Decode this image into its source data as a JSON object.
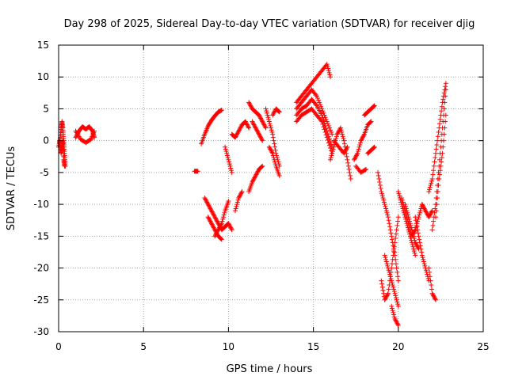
{
  "chart_data": {
    "type": "scatter",
    "title": "Day 298 of 2025, Sidereal Day-to-day VTEC variation (SDTVAR) for receiver djig",
    "xlabel": "GPS time / hours",
    "ylabel": "SDTVAR / TECUs",
    "xlim": [
      0,
      25
    ],
    "ylim": [
      -30,
      15
    ],
    "xticks": [
      "0",
      "5",
      "10",
      "15",
      "20",
      "25"
    ],
    "yticks": [
      "15",
      "10",
      "5",
      "0",
      "-5",
      "-10",
      "-15",
      "-20",
      "-25",
      "-30"
    ],
    "grid": true,
    "marker": "plus",
    "color": "#ff0000",
    "segments": [
      {
        "x": [
          0.0,
          0.1,
          0.15,
          0.2,
          0.25,
          0.3,
          0.35,
          0.4
        ],
        "y": [
          -1,
          0.5,
          2,
          3,
          2,
          0,
          -2,
          -4
        ]
      },
      {
        "x": [
          0.05,
          0.1,
          0.15,
          0.2,
          0.25,
          0.3,
          0.35
        ],
        "y": [
          0,
          -1,
          -2,
          -1,
          0,
          -3,
          -4
        ]
      },
      {
        "x": [
          1.0,
          1.2,
          1.4,
          1.6,
          1.8,
          2.0,
          2.1
        ],
        "y": [
          0.5,
          1.5,
          2.2,
          1.8,
          2.2,
          1.5,
          0.5
        ]
      },
      {
        "x": [
          1.0,
          1.3,
          1.6,
          1.9,
          2.1
        ],
        "y": [
          1.5,
          0.2,
          -0.3,
          0.2,
          1.5
        ]
      },
      {
        "x": [
          8.0,
          8.2
        ],
        "y": [
          -4.8,
          -4.8
        ]
      },
      {
        "x": [
          8.4,
          8.6,
          8.8,
          9.0,
          9.2,
          9.4,
          9.6
        ],
        "y": [
          -0.5,
          1,
          2.3,
          3.2,
          3.9,
          4.5,
          4.8
        ]
      },
      {
        "x": [
          8.6,
          8.8,
          9.0,
          9.2,
          9.4,
          9.6,
          9.8,
          10.0,
          10.2
        ],
        "y": [
          -9,
          -10,
          -11,
          -12,
          -13,
          -14,
          -13.5,
          -13,
          -14
        ]
      },
      {
        "x": [
          8.8,
          9.0,
          9.2,
          9.4,
          9.6
        ],
        "y": [
          -12,
          -13,
          -14,
          -15,
          -15.5
        ]
      },
      {
        "x": [
          9.2,
          9.4,
          9.6,
          9.8,
          10.0
        ],
        "y": [
          -15,
          -14,
          -13,
          -11,
          -9.5
        ]
      },
      {
        "x": [
          9.8,
          10.0,
          10.2
        ],
        "y": [
          -1,
          -3,
          -5
        ]
      },
      {
        "x": [
          10.2,
          10.4,
          10.6,
          10.8,
          11.0,
          11.2
        ],
        "y": [
          1,
          0.5,
          1.5,
          2.5,
          3,
          2
        ]
      },
      {
        "x": [
          10.4,
          10.6,
          10.8
        ],
        "y": [
          -11,
          -9,
          -8
        ]
      },
      {
        "x": [
          11.2,
          11.4,
          11.6,
          11.8,
          12.0
        ],
        "y": [
          -8,
          -6.5,
          -5.5,
          -4.5,
          -4
        ]
      },
      {
        "x": [
          11.2,
          11.4,
          11.6,
          11.8,
          12.0,
          12.2
        ],
        "y": [
          6,
          5,
          4.5,
          4,
          3,
          2
        ]
      },
      {
        "x": [
          11.4,
          11.6,
          11.8,
          12.0
        ],
        "y": [
          3,
          2,
          1,
          0
        ]
      },
      {
        "x": [
          12.2,
          12.4,
          12.6,
          12.8,
          13.0
        ],
        "y": [
          5,
          3,
          1,
          -2,
          -4
        ]
      },
      {
        "x": [
          12.4,
          12.6,
          12.8,
          13.0
        ],
        "y": [
          -1,
          -2,
          -4,
          -5.5
        ]
      },
      {
        "x": [
          12.6,
          12.8,
          13.0
        ],
        "y": [
          4,
          5,
          4.5
        ]
      },
      {
        "x": [
          14.0,
          14.3,
          14.6,
          14.9,
          15.2,
          15.5,
          15.8,
          16.0
        ],
        "y": [
          6,
          7,
          8,
          9,
          10,
          11,
          12,
          10
        ]
      },
      {
        "x": [
          14.0,
          14.3,
          14.6,
          14.9,
          15.2,
          15.5,
          15.8,
          16.1
        ],
        "y": [
          5,
          6,
          7,
          8,
          7,
          5,
          3,
          1
        ]
      },
      {
        "x": [
          14.0,
          14.3,
          14.6,
          14.9,
          15.2,
          15.5,
          15.8,
          16.1
        ],
        "y": [
          4,
          5,
          5.5,
          6.5,
          5.5,
          4,
          1.5,
          -1
        ]
      },
      {
        "x": [
          14.0,
          14.3,
          14.6,
          14.9,
          15.2,
          15.5,
          15.8,
          16.1
        ],
        "y": [
          3,
          4,
          4.5,
          5,
          4,
          3,
          0.5,
          -2
        ]
      },
      {
        "x": [
          16.0,
          16.2,
          16.4,
          16.6,
          16.8,
          17.0,
          17.2
        ],
        "y": [
          -3,
          -1,
          1,
          2,
          0,
          -3,
          -6
        ]
      },
      {
        "x": [
          16.2,
          16.5,
          16.8,
          17.0
        ],
        "y": [
          0,
          -1,
          -2,
          -1
        ]
      },
      {
        "x": [
          17.4,
          17.6,
          17.8,
          18.0,
          18.2,
          18.4
        ],
        "y": [
          -3,
          -2,
          0,
          1,
          2.5,
          3
        ]
      },
      {
        "x": [
          17.5,
          17.8,
          18.1
        ],
        "y": [
          -4,
          -5,
          -4.5
        ]
      },
      {
        "x": [
          18.0,
          18.2,
          18.4,
          18.6
        ],
        "y": [
          4,
          4.5,
          5,
          5.5
        ]
      },
      {
        "x": [
          18.2,
          18.4,
          18.6
        ],
        "y": [
          -2,
          -1.5,
          -1
        ]
      },
      {
        "x": [
          18.8,
          19.0,
          19.2,
          19.4,
          19.6,
          19.8,
          20.0
        ],
        "y": [
          -5,
          -8,
          -10,
          -12,
          -15,
          -18,
          -22
        ]
      },
      {
        "x": [
          19.0,
          19.2,
          19.4,
          19.6,
          19.8,
          20.0
        ],
        "y": [
          -22,
          -25,
          -24,
          -20,
          -16,
          -12
        ]
      },
      {
        "x": [
          19.2,
          19.4,
          19.6,
          19.8,
          20.0
        ],
        "y": [
          -18,
          -20,
          -22,
          -24,
          -26
        ]
      },
      {
        "x": [
          19.6,
          19.8,
          20.0
        ],
        "y": [
          -26,
          -28,
          -29
        ]
      },
      {
        "x": [
          20.0,
          20.2,
          20.4,
          20.6,
          20.8,
          21.0
        ],
        "y": [
          -8,
          -10,
          -12,
          -14,
          -16,
          -18
        ]
      },
      {
        "x": [
          20.2,
          20.4,
          20.6,
          20.8,
          21.0,
          21.2,
          21.4
        ],
        "y": [
          -9,
          -11,
          -13,
          -15,
          -14,
          -12,
          -10
        ]
      },
      {
        "x": [
          20.4,
          20.6,
          20.8,
          21.0,
          21.2
        ],
        "y": [
          -10,
          -12,
          -14,
          -16,
          -17
        ]
      },
      {
        "x": [
          21.0,
          21.2,
          21.4,
          21.6,
          21.8
        ],
        "y": [
          -12,
          -15,
          -18,
          -20,
          -22
        ]
      },
      {
        "x": [
          21.4,
          21.6,
          21.8,
          22.0
        ],
        "y": [
          -10,
          -11,
          -12,
          -11
        ]
      },
      {
        "x": [
          21.8,
          22.0,
          22.2
        ],
        "y": [
          -20,
          -24,
          -25
        ]
      },
      {
        "x": [
          21.8,
          22.0,
          22.2,
          22.4,
          22.6,
          22.8
        ],
        "y": [
          -8,
          -6,
          -2,
          2,
          6,
          9
        ]
      },
      {
        "x": [
          22.0,
          22.2,
          22.4,
          22.6,
          22.8
        ],
        "y": [
          -14,
          -10,
          -4,
          2,
          8
        ]
      },
      {
        "x": [
          22.2,
          22.4,
          22.6,
          22.8
        ],
        "y": [
          -12,
          -6,
          -2,
          4
        ]
      }
    ]
  }
}
